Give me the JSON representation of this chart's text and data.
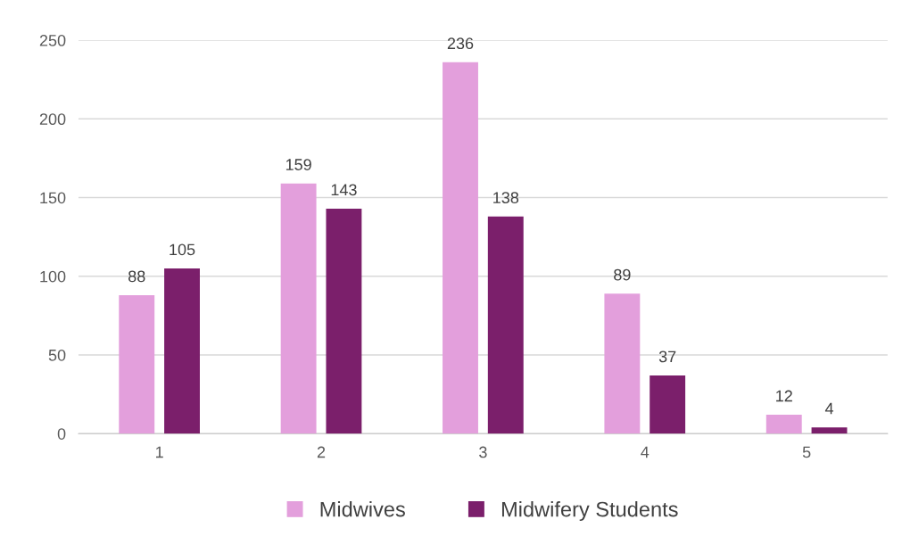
{
  "chart_data": {
    "type": "bar",
    "categories": [
      "1",
      "2",
      "3",
      "4",
      "5"
    ],
    "series": [
      {
        "name": "Midwives",
        "color": "#e39fdc",
        "values": [
          88,
          159,
          236,
          89,
          12
        ]
      },
      {
        "name": "Midwifery Students",
        "color": "#7b1f6b",
        "values": [
          105,
          143,
          138,
          37,
          4
        ]
      }
    ],
    "ylim": [
      0,
      250
    ],
    "yticks": [
      0,
      50,
      100,
      150,
      200,
      250
    ],
    "grid": "y",
    "legend": "bottom",
    "data_labels": true
  }
}
